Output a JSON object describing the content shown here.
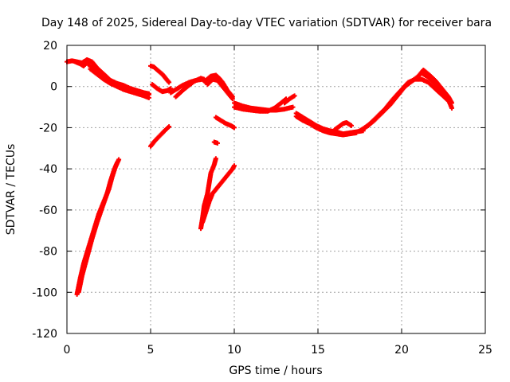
{
  "chart_data": {
    "type": "scatter",
    "title": "Day 148 of 2025, Sidereal Day-to-day VTEC variation (SDTVAR) for receiver bara",
    "xlabel": "GPS time / hours",
    "ylabel": "SDTVAR / TECUs",
    "xlim": [
      0,
      25
    ],
    "ylim": [
      -120,
      20
    ],
    "xticks": [
      "0",
      "5",
      "10",
      "15",
      "20",
      "25"
    ],
    "xtick_values": [
      0,
      5,
      10,
      15,
      20,
      25
    ],
    "yticks": [
      "20",
      "0",
      "-20",
      "-40",
      "-60",
      "-80",
      "-100",
      "-120"
    ],
    "ytick_values": [
      20,
      0,
      -20,
      -40,
      -60,
      -80,
      -100,
      -120
    ],
    "grid": true,
    "marker_color": "#ff0000",
    "series": [
      {
        "points": [
          [
            0.0,
            12
          ],
          [
            0.3,
            12.5
          ],
          [
            0.6,
            12
          ],
          [
            0.9,
            11.5
          ],
          [
            1.0,
            12
          ],
          [
            1.2,
            13
          ]
        ]
      },
      {
        "points": [
          [
            0.5,
            12
          ],
          [
            0.8,
            11
          ],
          [
            1.0,
            10
          ],
          [
            1.2,
            12
          ]
        ]
      },
      {
        "points": [
          [
            1.2,
            13
          ],
          [
            1.5,
            12
          ],
          [
            1.8,
            9
          ],
          [
            2.2,
            6
          ],
          [
            2.6,
            3
          ],
          [
            3.0,
            1.5
          ],
          [
            3.4,
            0.5
          ],
          [
            3.8,
            -1
          ],
          [
            4.2,
            -2
          ],
          [
            4.6,
            -3
          ],
          [
            4.9,
            -3.5
          ]
        ]
      },
      {
        "points": [
          [
            1.3,
            10.5
          ],
          [
            1.6,
            9
          ],
          [
            2.0,
            6
          ],
          [
            2.4,
            3
          ],
          [
            2.8,
            1
          ],
          [
            3.2,
            -0.5
          ],
          [
            3.6,
            -1.5
          ],
          [
            4.0,
            -2.5
          ],
          [
            4.5,
            -3.5
          ],
          [
            4.9,
            -4
          ]
        ]
      },
      {
        "points": [
          [
            1.4,
            8.5
          ],
          [
            1.8,
            6
          ],
          [
            2.2,
            3.5
          ],
          [
            2.6,
            1.5
          ],
          [
            3.0,
            0
          ],
          [
            3.4,
            -1.5
          ],
          [
            3.8,
            -2.5
          ],
          [
            4.2,
            -3.5
          ],
          [
            4.6,
            -4.5
          ],
          [
            4.9,
            -5.5
          ]
        ]
      },
      {
        "points": [
          [
            0.6,
            -101
          ],
          [
            0.8,
            -93
          ],
          [
            1.0,
            -86
          ],
          [
            1.3,
            -78
          ],
          [
            1.6,
            -70
          ],
          [
            1.9,
            -62
          ],
          [
            2.2,
            -56
          ],
          [
            2.5,
            -50
          ],
          [
            2.7,
            -44
          ],
          [
            2.9,
            -39
          ],
          [
            3.1,
            -35.5
          ]
        ]
      },
      {
        "points": [
          [
            0.7,
            -100
          ],
          [
            0.9,
            -92
          ],
          [
            1.2,
            -83
          ],
          [
            1.5,
            -74
          ],
          [
            1.8,
            -66
          ],
          [
            2.1,
            -59
          ],
          [
            2.4,
            -52
          ],
          [
            2.6,
            -46
          ],
          [
            2.8,
            -41
          ],
          [
            3.0,
            -37
          ]
        ]
      },
      {
        "points": [
          [
            5.0,
            -29
          ],
          [
            5.3,
            -26
          ],
          [
            5.6,
            -23.5
          ],
          [
            5.9,
            -21
          ],
          [
            6.1,
            -19.5
          ]
        ]
      },
      {
        "points": [
          [
            5.0,
            10
          ],
          [
            5.2,
            9.5
          ],
          [
            5.4,
            8
          ],
          [
            5.7,
            6
          ],
          [
            5.9,
            4
          ],
          [
            6.1,
            2
          ]
        ]
      },
      {
        "points": [
          [
            5.1,
            1
          ],
          [
            5.4,
            -1
          ],
          [
            5.7,
            -2.5
          ],
          [
            6.0,
            -2
          ],
          [
            6.2,
            -1
          ]
        ]
      },
      {
        "points": [
          [
            6.2,
            -3
          ],
          [
            6.5,
            -1.5
          ],
          [
            6.9,
            0.5
          ],
          [
            7.3,
            2
          ],
          [
            7.7,
            3
          ],
          [
            8.1,
            3.5
          ],
          [
            8.3,
            2
          ]
        ]
      },
      {
        "points": [
          [
            6.5,
            -5
          ],
          [
            6.9,
            -2
          ],
          [
            7.2,
            0
          ],
          [
            7.6,
            2.5
          ],
          [
            8.0,
            4
          ],
          [
            8.2,
            3.5
          ]
        ]
      },
      {
        "points": [
          [
            8.3,
            3
          ],
          [
            8.6,
            5
          ],
          [
            8.9,
            5.5
          ],
          [
            9.1,
            4
          ],
          [
            9.3,
            2
          ],
          [
            9.6,
            -2
          ],
          [
            9.9,
            -5
          ]
        ]
      },
      {
        "points": [
          [
            8.4,
            1
          ],
          [
            8.7,
            3.5
          ],
          [
            9.0,
            3
          ],
          [
            9.3,
            0
          ],
          [
            9.6,
            -3
          ],
          [
            9.9,
            -6
          ]
        ]
      },
      {
        "points": [
          [
            9.0,
            -27.5
          ],
          [
            8.8,
            -27
          ]
        ]
      },
      {
        "points": [
          [
            8.9,
            -15
          ],
          [
            9.2,
            -16.5
          ],
          [
            9.5,
            -18
          ],
          [
            9.8,
            -19
          ],
          [
            10.0,
            -20
          ]
        ]
      },
      {
        "points": [
          [
            8.0,
            -69
          ],
          [
            8.1,
            -64
          ],
          [
            8.2,
            -58
          ],
          [
            8.4,
            -52
          ],
          [
            8.5,
            -47
          ],
          [
            8.6,
            -42
          ],
          [
            8.8,
            -38
          ],
          [
            8.9,
            -35
          ]
        ]
      },
      {
        "points": [
          [
            8.1,
            -66
          ],
          [
            8.3,
            -61
          ],
          [
            8.5,
            -56
          ],
          [
            8.7,
            -52
          ],
          [
            9.0,
            -49
          ],
          [
            9.3,
            -46
          ],
          [
            9.6,
            -43
          ],
          [
            9.9,
            -40
          ],
          [
            10.0,
            -38.5
          ]
        ]
      },
      {
        "points": [
          [
            10.0,
            -8
          ],
          [
            10.5,
            -9.5
          ],
          [
            11.0,
            -10.5
          ],
          [
            11.5,
            -11
          ],
          [
            12.0,
            -11.5
          ],
          [
            12.5,
            -11.5
          ],
          [
            13.0,
            -11
          ],
          [
            13.5,
            -10
          ]
        ]
      },
      {
        "points": [
          [
            10.0,
            -10
          ],
          [
            10.5,
            -11
          ],
          [
            11.0,
            -11.5
          ],
          [
            11.5,
            -12
          ],
          [
            12.0,
            -12
          ],
          [
            12.4,
            -10.5
          ],
          [
            12.8,
            -8
          ],
          [
            13.1,
            -6
          ]
        ]
      },
      {
        "points": [
          [
            13.0,
            -8
          ],
          [
            13.3,
            -6
          ],
          [
            13.6,
            -4.5
          ]
        ]
      },
      {
        "points": [
          [
            13.7,
            -13
          ],
          [
            14.1,
            -15
          ],
          [
            14.5,
            -17
          ],
          [
            14.9,
            -19
          ],
          [
            15.3,
            -20.5
          ],
          [
            15.7,
            -21.5
          ],
          [
            16.1,
            -22
          ],
          [
            16.5,
            -23
          ],
          [
            16.9,
            -22.5
          ],
          [
            17.3,
            -22
          ],
          [
            17.7,
            -21.5
          ]
        ]
      },
      {
        "points": [
          [
            13.7,
            -14.5
          ],
          [
            14.1,
            -16.5
          ],
          [
            14.5,
            -18
          ],
          [
            14.9,
            -20
          ],
          [
            15.3,
            -21.5
          ],
          [
            15.7,
            -22.5
          ],
          [
            16.1,
            -23
          ],
          [
            16.5,
            -23.5
          ],
          [
            16.9,
            -23
          ],
          [
            17.3,
            -22.5
          ]
        ]
      },
      {
        "points": [
          [
            16.0,
            -21
          ],
          [
            16.5,
            -18
          ],
          [
            16.7,
            -17.5
          ],
          [
            17.0,
            -19
          ]
        ]
      },
      {
        "points": [
          [
            17.5,
            -21.5
          ],
          [
            18.0,
            -19
          ],
          [
            18.5,
            -15
          ],
          [
            19.0,
            -11
          ],
          [
            19.5,
            -6
          ],
          [
            20.0,
            -1.5
          ],
          [
            20.4,
            2
          ],
          [
            20.8,
            3.5
          ],
          [
            21.2,
            3.5
          ],
          [
            21.6,
            2
          ],
          [
            22.0,
            -1
          ],
          [
            22.4,
            -4
          ],
          [
            22.8,
            -7
          ]
        ]
      },
      {
        "points": [
          [
            17.8,
            -20
          ],
          [
            18.3,
            -17
          ],
          [
            18.8,
            -13
          ],
          [
            19.3,
            -9
          ],
          [
            19.8,
            -4
          ],
          [
            20.2,
            0
          ],
          [
            20.6,
            2.5
          ],
          [
            21.0,
            5
          ],
          [
            21.3,
            8
          ],
          [
            21.6,
            6
          ],
          [
            22.0,
            3
          ],
          [
            22.4,
            -1
          ],
          [
            22.8,
            -5
          ],
          [
            23.0,
            -8
          ]
        ]
      },
      {
        "points": [
          [
            21.2,
            6.5
          ],
          [
            21.6,
            4.5
          ],
          [
            22.0,
            1.5
          ],
          [
            22.4,
            -2.5
          ],
          [
            22.8,
            -6.5
          ],
          [
            23.0,
            -10.5
          ]
        ]
      }
    ]
  }
}
